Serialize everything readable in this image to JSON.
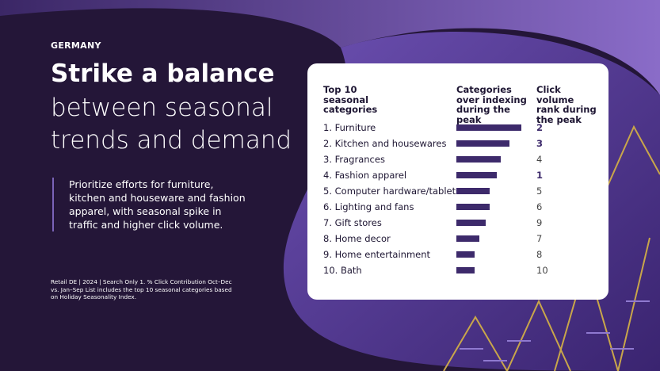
{
  "header": {
    "country": "GERMANY"
  },
  "title": {
    "lines": [
      "Strike a balance",
      "between seasonal",
      "trends and demand"
    ]
  },
  "body": "Prioritize efforts for furniture, kitchen and houseware and fashion apparel, with seasonal spike in traffic and higher click volume.",
  "footnote": "Retail DE | 2024 | Search Only 1. % Click Contribution Oct–Dec vs. Jan–Sep List includes the top 10 seasonal categories based on Holiday Seasonality Index.",
  "chart_data": {
    "type": "bar",
    "column_headers": [
      "Top 10 seasonal categories",
      "Categories over indexing during the peak",
      "Click volume rank during the peak"
    ],
    "categories": [
      "1. Furniture",
      "2. Kitchen and housewares",
      "3. Fragrances",
      "4. Fashion apparel",
      "5. Computer hardware/tablets",
      "6. Lighting and fans",
      "7. Gift stores",
      "8. Home decor",
      "9. Home entertainment",
      "10. Bath"
    ],
    "values": [
      82,
      67,
      56,
      51,
      42,
      42,
      37,
      29,
      23,
      23
    ],
    "ranks": [
      2,
      3,
      4,
      1,
      5,
      6,
      9,
      7,
      8,
      10
    ],
    "color": "#3d2a6b"
  }
}
